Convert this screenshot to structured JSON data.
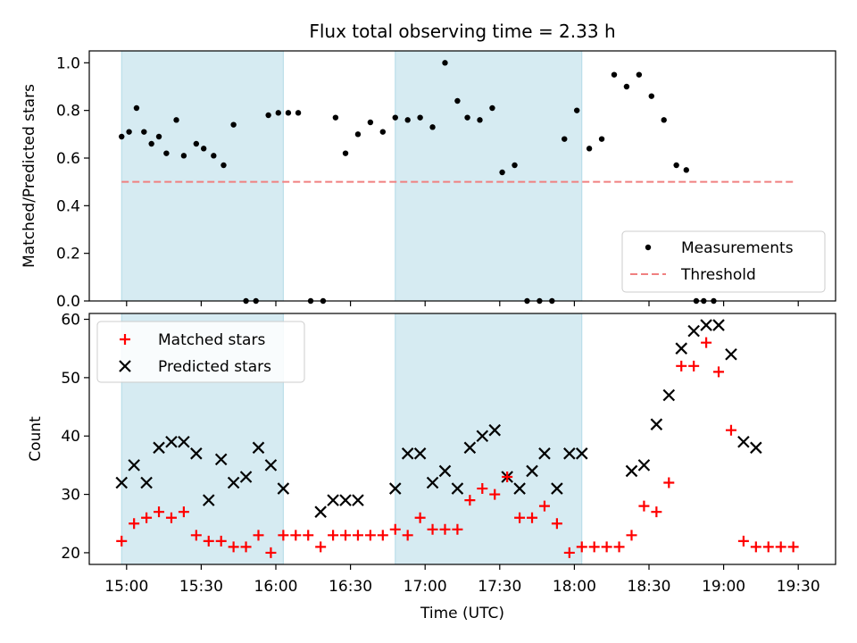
{
  "chart_data": [
    {
      "type": "scatter",
      "title": "Flux total observing time = 2.33 h",
      "xlabel": "",
      "ylabel": "Matched/Predicted stars",
      "ylim": [
        0,
        1.05
      ],
      "yticks": [
        0.0,
        0.2,
        0.4,
        0.6,
        0.8,
        1.0
      ],
      "ytick_labels": [
        "0.0",
        "0.2",
        "0.4",
        "0.6",
        "0.8",
        "1.0"
      ],
      "grid": false,
      "legend_position": "lower-right",
      "shaded_spans": [
        [
          "14:58",
          "16:03"
        ],
        [
          "16:48",
          "18:03"
        ]
      ],
      "series": [
        {
          "name": "Measurements",
          "marker": "dot",
          "color": "#000000",
          "points": [
            [
              "14:58",
              0.69
            ],
            [
              "15:01",
              0.71
            ],
            [
              "15:04",
              0.81
            ],
            [
              "15:07",
              0.71
            ],
            [
              "15:10",
              0.66
            ],
            [
              "15:13",
              0.69
            ],
            [
              "15:16",
              0.62
            ],
            [
              "15:20",
              0.76
            ],
            [
              "15:23",
              0.61
            ],
            [
              "15:28",
              0.66
            ],
            [
              "15:31",
              0.64
            ],
            [
              "15:35",
              0.61
            ],
            [
              "15:39",
              0.57
            ],
            [
              "15:43",
              0.74
            ],
            [
              "15:48",
              0.0
            ],
            [
              "15:52",
              0.0
            ],
            [
              "15:57",
              0.78
            ],
            [
              "16:01",
              0.79
            ],
            [
              "16:05",
              0.79
            ],
            [
              "16:09",
              0.79
            ],
            [
              "16:14",
              0.0
            ],
            [
              "16:19",
              0.0
            ],
            [
              "16:24",
              0.77
            ],
            [
              "16:28",
              0.62
            ],
            [
              "16:33",
              0.7
            ],
            [
              "16:38",
              0.75
            ],
            [
              "16:43",
              0.71
            ],
            [
              "16:48",
              0.77
            ],
            [
              "16:53",
              0.76
            ],
            [
              "16:58",
              0.77
            ],
            [
              "17:03",
              0.73
            ],
            [
              "17:08",
              1.0
            ],
            [
              "17:13",
              0.84
            ],
            [
              "17:17",
              0.77
            ],
            [
              "17:22",
              0.76
            ],
            [
              "17:27",
              0.81
            ],
            [
              "17:31",
              0.54
            ],
            [
              "17:36",
              0.57
            ],
            [
              "17:41",
              0.0
            ],
            [
              "17:46",
              0.0
            ],
            [
              "17:51",
              0.0
            ],
            [
              "17:56",
              0.68
            ],
            [
              "18:01",
              0.8
            ],
            [
              "18:06",
              0.64
            ],
            [
              "18:11",
              0.68
            ],
            [
              "18:16",
              0.95
            ],
            [
              "18:21",
              0.9
            ],
            [
              "18:26",
              0.95
            ],
            [
              "18:31",
              0.86
            ],
            [
              "18:36",
              0.76
            ],
            [
              "18:41",
              0.57
            ],
            [
              "18:45",
              0.55
            ],
            [
              "18:49",
              0.0
            ],
            [
              "18:52",
              0.0
            ],
            [
              "18:56",
              0.0
            ]
          ]
        },
        {
          "name": "Threshold",
          "marker": "dashed-line",
          "color": "#f08080",
          "points": [
            [
              "14:58",
              0.5
            ],
            [
              "19:28",
              0.5
            ]
          ]
        }
      ]
    },
    {
      "type": "scatter",
      "title": "",
      "xlabel": "Time (UTC)",
      "ylabel": "Count",
      "ylim": [
        18,
        61
      ],
      "yticks": [
        20,
        30,
        40,
        50,
        60
      ],
      "ytick_labels": [
        "20",
        "30",
        "40",
        "50",
        "60"
      ],
      "xticks": [
        "15:00",
        "15:30",
        "16:00",
        "16:30",
        "17:00",
        "17:30",
        "18:00",
        "18:30",
        "19:00",
        "19:30"
      ],
      "xlim": [
        "14:45",
        "19:45"
      ],
      "grid": false,
      "legend_position": "upper-left",
      "shaded_spans": [
        [
          "14:58",
          "16:03"
        ],
        [
          "16:48",
          "18:03"
        ]
      ],
      "series": [
        {
          "name": "Matched stars",
          "marker": "plus",
          "color": "#ff0000",
          "points": [
            [
              "14:58",
              22
            ],
            [
              "15:03",
              25
            ],
            [
              "15:08",
              26
            ],
            [
              "15:13",
              27
            ],
            [
              "15:18",
              26
            ],
            [
              "15:23",
              27
            ],
            [
              "15:28",
              23
            ],
            [
              "15:33",
              22
            ],
            [
              "15:38",
              22
            ],
            [
              "15:43",
              21
            ],
            [
              "15:48",
              21
            ],
            [
              "15:53",
              23
            ],
            [
              "15:58",
              20
            ],
            [
              "16:03",
              23
            ],
            [
              "16:08",
              23
            ],
            [
              "16:13",
              23
            ],
            [
              "16:18",
              21
            ],
            [
              "16:23",
              23
            ],
            [
              "16:28",
              23
            ],
            [
              "16:33",
              23
            ],
            [
              "16:38",
              23
            ],
            [
              "16:43",
              23
            ],
            [
              "16:48",
              24
            ],
            [
              "16:53",
              23
            ],
            [
              "16:58",
              26
            ],
            [
              "17:03",
              24
            ],
            [
              "17:08",
              24
            ],
            [
              "17:13",
              24
            ],
            [
              "17:18",
              29
            ],
            [
              "17:23",
              31
            ],
            [
              "17:28",
              30
            ],
            [
              "17:33",
              33
            ],
            [
              "17:38",
              26
            ],
            [
              "17:43",
              26
            ],
            [
              "17:48",
              28
            ],
            [
              "17:53",
              25
            ],
            [
              "17:58",
              20
            ],
            [
              "18:03",
              21
            ],
            [
              "18:08",
              21
            ],
            [
              "18:13",
              21
            ],
            [
              "18:18",
              21
            ],
            [
              "18:23",
              23
            ],
            [
              "18:28",
              28
            ],
            [
              "18:33",
              27
            ],
            [
              "18:38",
              32
            ],
            [
              "18:43",
              52
            ],
            [
              "18:48",
              52
            ],
            [
              "18:53",
              56
            ],
            [
              "18:58",
              51
            ],
            [
              "19:03",
              41
            ],
            [
              "19:08",
              22
            ],
            [
              "19:13",
              21
            ],
            [
              "19:18",
              21
            ],
            [
              "19:23",
              21
            ],
            [
              "19:28",
              21
            ]
          ]
        },
        {
          "name": "Predicted stars",
          "marker": "x",
          "color": "#000000",
          "points": [
            [
              "14:58",
              32
            ],
            [
              "15:03",
              35
            ],
            [
              "15:08",
              32
            ],
            [
              "15:13",
              38
            ],
            [
              "15:18",
              39
            ],
            [
              "15:23",
              39
            ],
            [
              "15:28",
              37
            ],
            [
              "15:33",
              29
            ],
            [
              "15:38",
              36
            ],
            [
              "15:43",
              32
            ],
            [
              "15:48",
              33
            ],
            [
              "15:53",
              38
            ],
            [
              "15:58",
              35
            ],
            [
              "16:03",
              31
            ],
            [
              "16:18",
              27
            ],
            [
              "16:23",
              29
            ],
            [
              "16:28",
              29
            ],
            [
              "16:33",
              29
            ],
            [
              "16:48",
              31
            ],
            [
              "16:53",
              37
            ],
            [
              "16:58",
              37
            ],
            [
              "17:03",
              32
            ],
            [
              "17:08",
              34
            ],
            [
              "17:13",
              31
            ],
            [
              "17:18",
              38
            ],
            [
              "17:23",
              40
            ],
            [
              "17:28",
              41
            ],
            [
              "17:33",
              33
            ],
            [
              "17:38",
              31
            ],
            [
              "17:43",
              34
            ],
            [
              "17:48",
              37
            ],
            [
              "17:53",
              31
            ],
            [
              "17:58",
              37
            ],
            [
              "18:03",
              37
            ],
            [
              "18:23",
              34
            ],
            [
              "18:28",
              35
            ],
            [
              "18:33",
              42
            ],
            [
              "18:38",
              47
            ],
            [
              "18:43",
              55
            ],
            [
              "18:48",
              58
            ],
            [
              "18:53",
              59
            ],
            [
              "18:58",
              59
            ],
            [
              "19:03",
              54
            ],
            [
              "19:08",
              39
            ],
            [
              "19:13",
              38
            ]
          ]
        }
      ]
    }
  ]
}
